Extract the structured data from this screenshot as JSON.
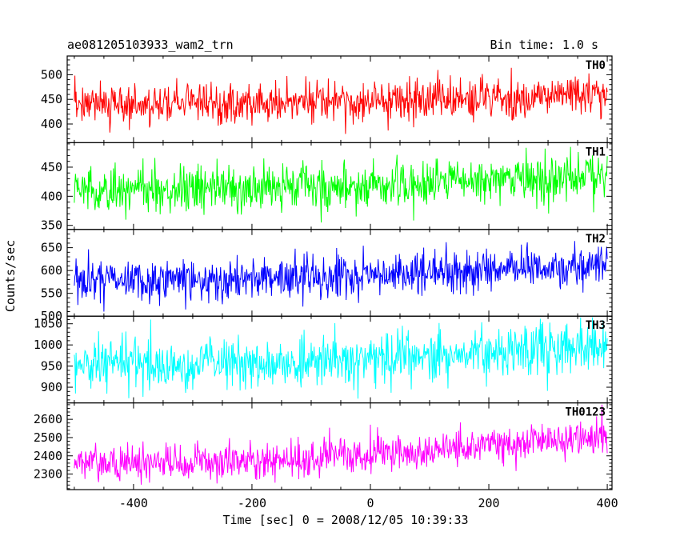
{
  "header": {
    "title": "ae081205103933_wam2_trn",
    "bin_time": "Bin time: 1.0 s"
  },
  "chart_data": {
    "type": "line",
    "xlabel": "Time [sec] 0 = 2008/12/05 10:39:33",
    "ylabel": "Counts/sec",
    "xlim": [
      -512,
      408
    ],
    "x_ticks": [
      -400,
      -200,
      0,
      200,
      400
    ],
    "x_range": [
      -500,
      400
    ],
    "bin_time_s": 1.0,
    "panels": [
      {
        "name": "TH0",
        "color": "#ff0000",
        "ylim": [
          362,
          538
        ],
        "y_ticks": [
          400,
          450,
          500
        ],
        "mean_start": 440,
        "mean_end": 462,
        "noise": 20,
        "data_range": [
          380,
          535
        ]
      },
      {
        "name": "TH1",
        "color": "#00ff00",
        "ylim": [
          343,
          492
        ],
        "y_ticks": [
          350,
          400,
          450
        ],
        "mean_start": 410,
        "mean_end": 440,
        "noise": 20,
        "data_range": [
          355,
          490
        ]
      },
      {
        "name": "TH2",
        "color": "#0000ff",
        "ylim": [
          500,
          690
        ],
        "y_ticks": [
          500,
          550,
          600,
          650
        ],
        "mean_start": 578,
        "mean_end": 615,
        "noise": 24,
        "data_range": [
          510,
          690
        ]
      },
      {
        "name": "TH3",
        "color": "#00ffff",
        "ylim": [
          863,
          1068
        ],
        "y_ticks": [
          900,
          950,
          1000,
          1050
        ],
        "mean_start": 955,
        "mean_end": 1000,
        "noise": 30,
        "data_range": [
          866,
          1065
        ]
      },
      {
        "name": "TH0123",
        "color": "#ff00ff",
        "ylim": [
          2215,
          2690
        ],
        "y_ticks": [
          2300,
          2400,
          2500,
          2600
        ],
        "mean_start": 2360,
        "mean_end": 2510,
        "noise": 50,
        "data_range": [
          2225,
          2680
        ]
      }
    ]
  }
}
